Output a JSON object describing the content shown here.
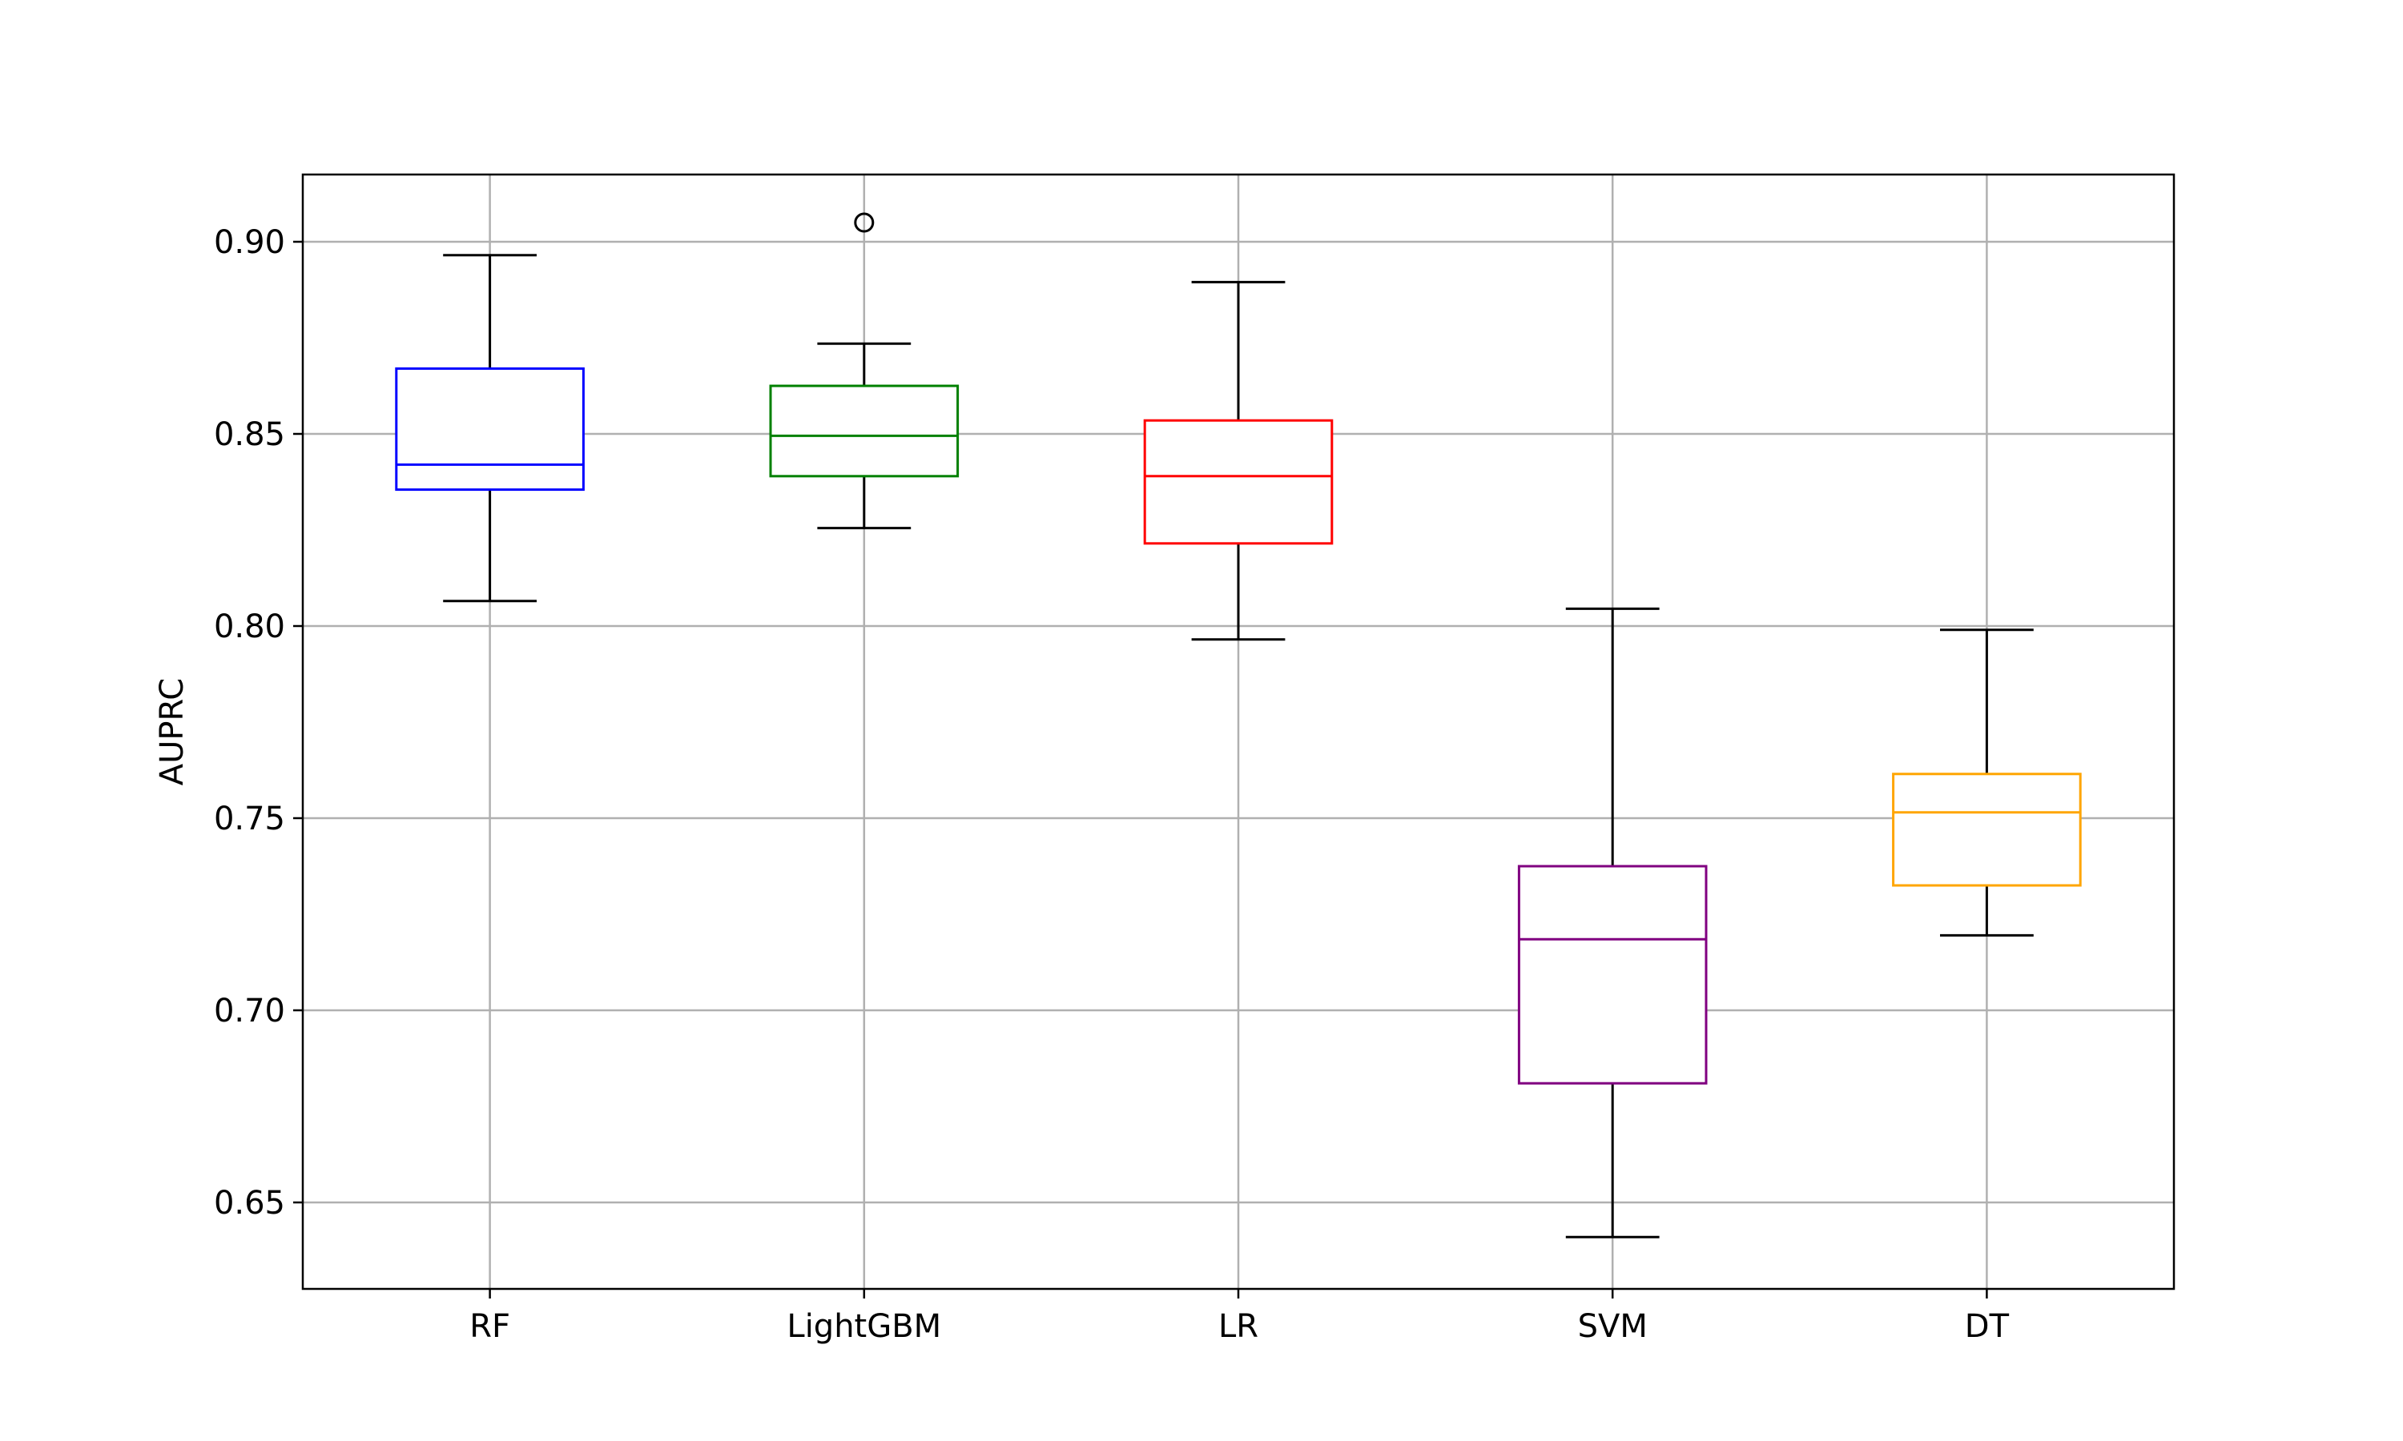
{
  "chart_data": {
    "type": "box",
    "ylabel": "AUPRC",
    "ylim": [
      0.6275,
      0.9175
    ],
    "yticks": [
      0.65,
      0.7,
      0.75,
      0.8,
      0.85,
      0.9
    ],
    "ytick_labels": [
      "0.65",
      "0.70",
      "0.75",
      "0.80",
      "0.85",
      "0.90"
    ],
    "grid": true,
    "categories": [
      "RF",
      "LightGBM",
      "LR",
      "SVM",
      "DT"
    ],
    "boxes": [
      {
        "label": "RF",
        "color": "#0000ff",
        "whisker_low": 0.8065,
        "q1": 0.8355,
        "median": 0.842,
        "q3": 0.867,
        "whisker_high": 0.8965,
        "outliers": []
      },
      {
        "label": "LightGBM",
        "color": "#008000",
        "whisker_low": 0.8255,
        "q1": 0.839,
        "median": 0.8495,
        "q3": 0.8625,
        "whisker_high": 0.8735,
        "outliers": [
          0.905
        ]
      },
      {
        "label": "LR",
        "color": "#ff0000",
        "whisker_low": 0.7965,
        "q1": 0.8215,
        "median": 0.839,
        "q3": 0.8535,
        "whisker_high": 0.8895,
        "outliers": []
      },
      {
        "label": "SVM",
        "color": "#800080",
        "whisker_low": 0.641,
        "q1": 0.681,
        "median": 0.7185,
        "q3": 0.7375,
        "whisker_high": 0.8045,
        "outliers": []
      },
      {
        "label": "DT",
        "color": "#ffa500",
        "whisker_low": 0.7195,
        "q1": 0.7325,
        "median": 0.7515,
        "q3": 0.7615,
        "whisker_high": 0.799,
        "outliers": []
      }
    ]
  }
}
